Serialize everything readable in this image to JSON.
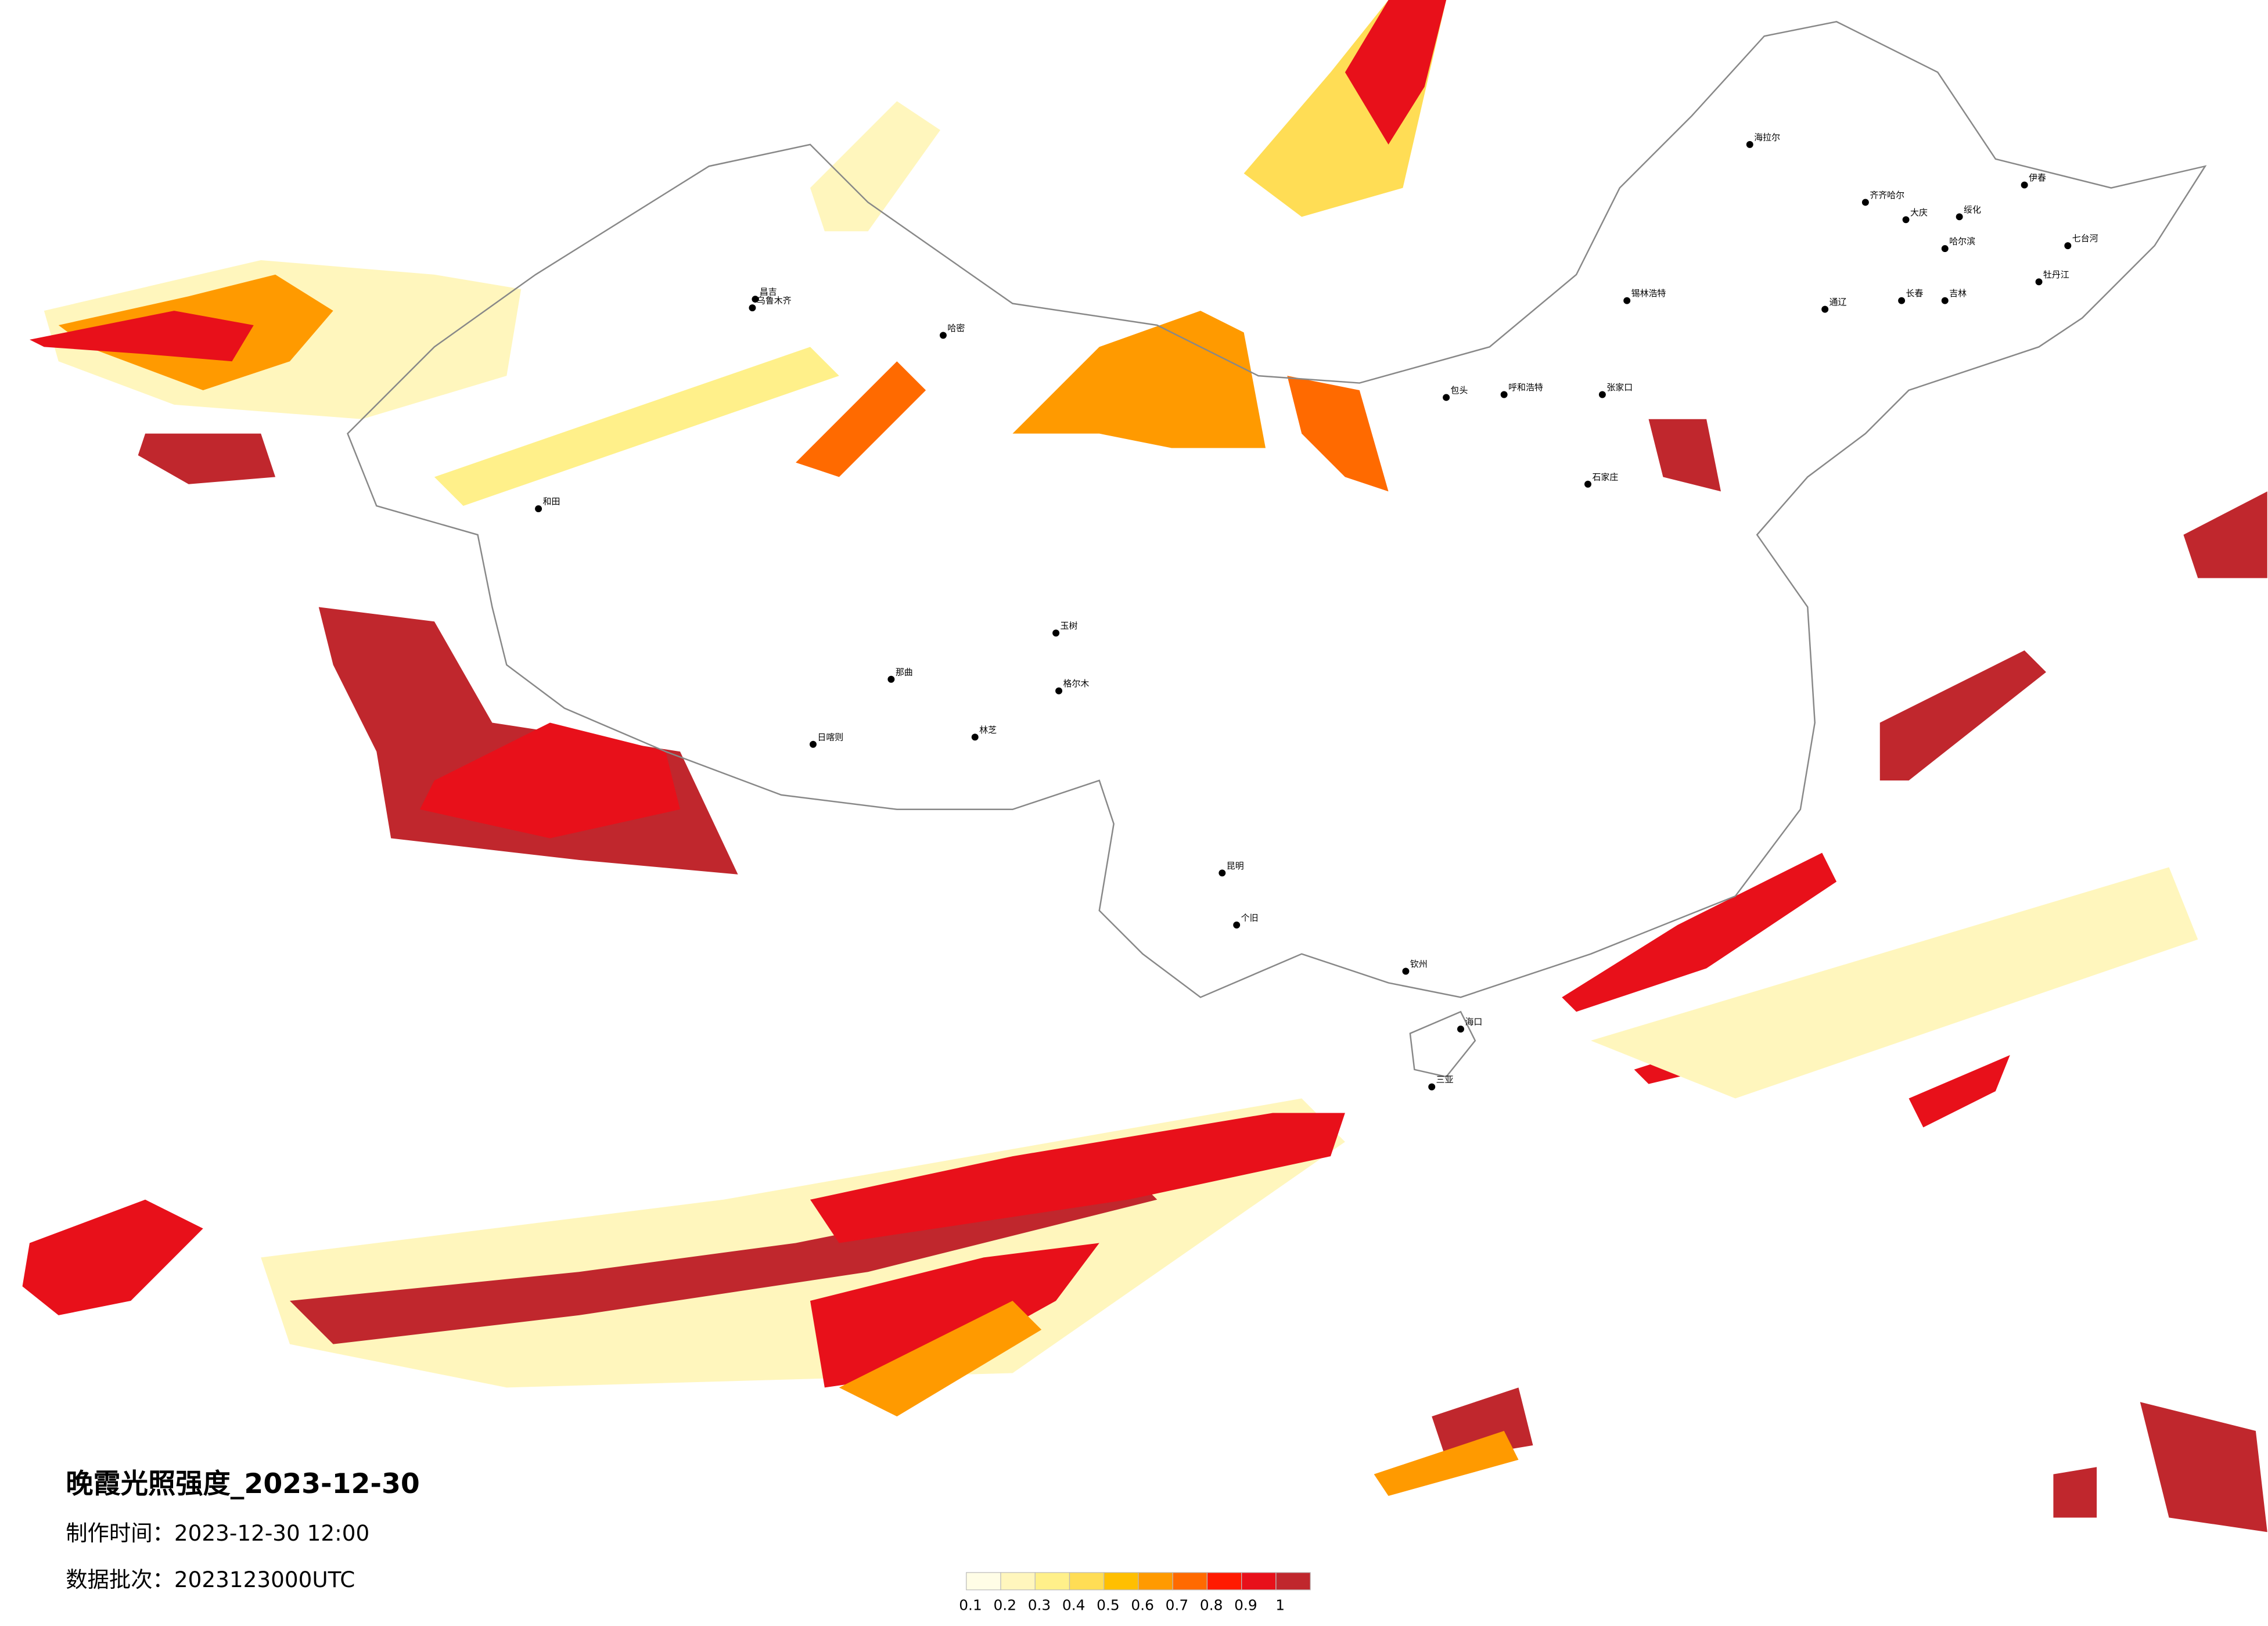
{
  "header": {
    "title": "晚霞光照强度_2023-12-30",
    "made_time": "制作时间：2023-12-30 12:00",
    "data_batch": "数据批次：2023123000UTC"
  },
  "legend": {
    "ticks": [
      0.1,
      0.2,
      0.3,
      0.4,
      0.5,
      0.6,
      0.7,
      0.8,
      0.9,
      1
    ],
    "colors": [
      "#fffde6",
      "#fff6bd",
      "#fff08a",
      "#ffdd55",
      "#ffbf00",
      "#ff9a00",
      "#ff6a00",
      "#ff1a00",
      "#e8101a",
      "#c0272d"
    ]
  },
  "cities": [
    "海拉尔",
    "齐齐哈尔",
    "大庆",
    "哈尔滨",
    "长春",
    "吉林",
    "牡丹江",
    "七台河",
    "绥化",
    "伊春",
    "通辽",
    "锡林浩特",
    "张家口",
    "呼和浩特",
    "包头",
    "石家庄",
    "乌鲁木齐",
    "昌吉",
    "哈密",
    "和田",
    "日喀则",
    "林芝",
    "那曲",
    "格尔木",
    "玉树",
    "昆明",
    "个旧",
    "钦州",
    "海口",
    "三亚"
  ]
}
